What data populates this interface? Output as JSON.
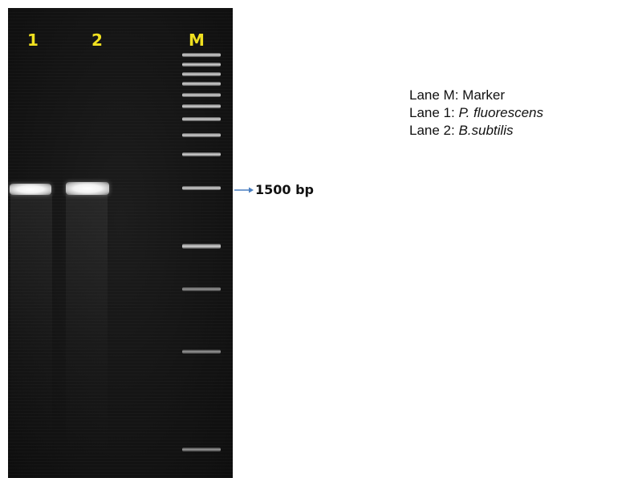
{
  "gel": {
    "lane_labels": [
      "1",
      "2",
      "M"
    ],
    "label_color": "#f0e020",
    "background_color": "#141414"
  },
  "annotation": {
    "arrow_label": "1500 bp",
    "arrow_color": "#4a7fc1"
  },
  "legend": {
    "lines": [
      {
        "prefix": "Lane M: ",
        "name": "Marker",
        "italic": false
      },
      {
        "prefix": "Lane 1: ",
        "name": "P. fluorescens",
        "italic": true
      },
      {
        "prefix": "Lane 2: ",
        "name": "B.subtilis",
        "italic": true
      }
    ]
  }
}
